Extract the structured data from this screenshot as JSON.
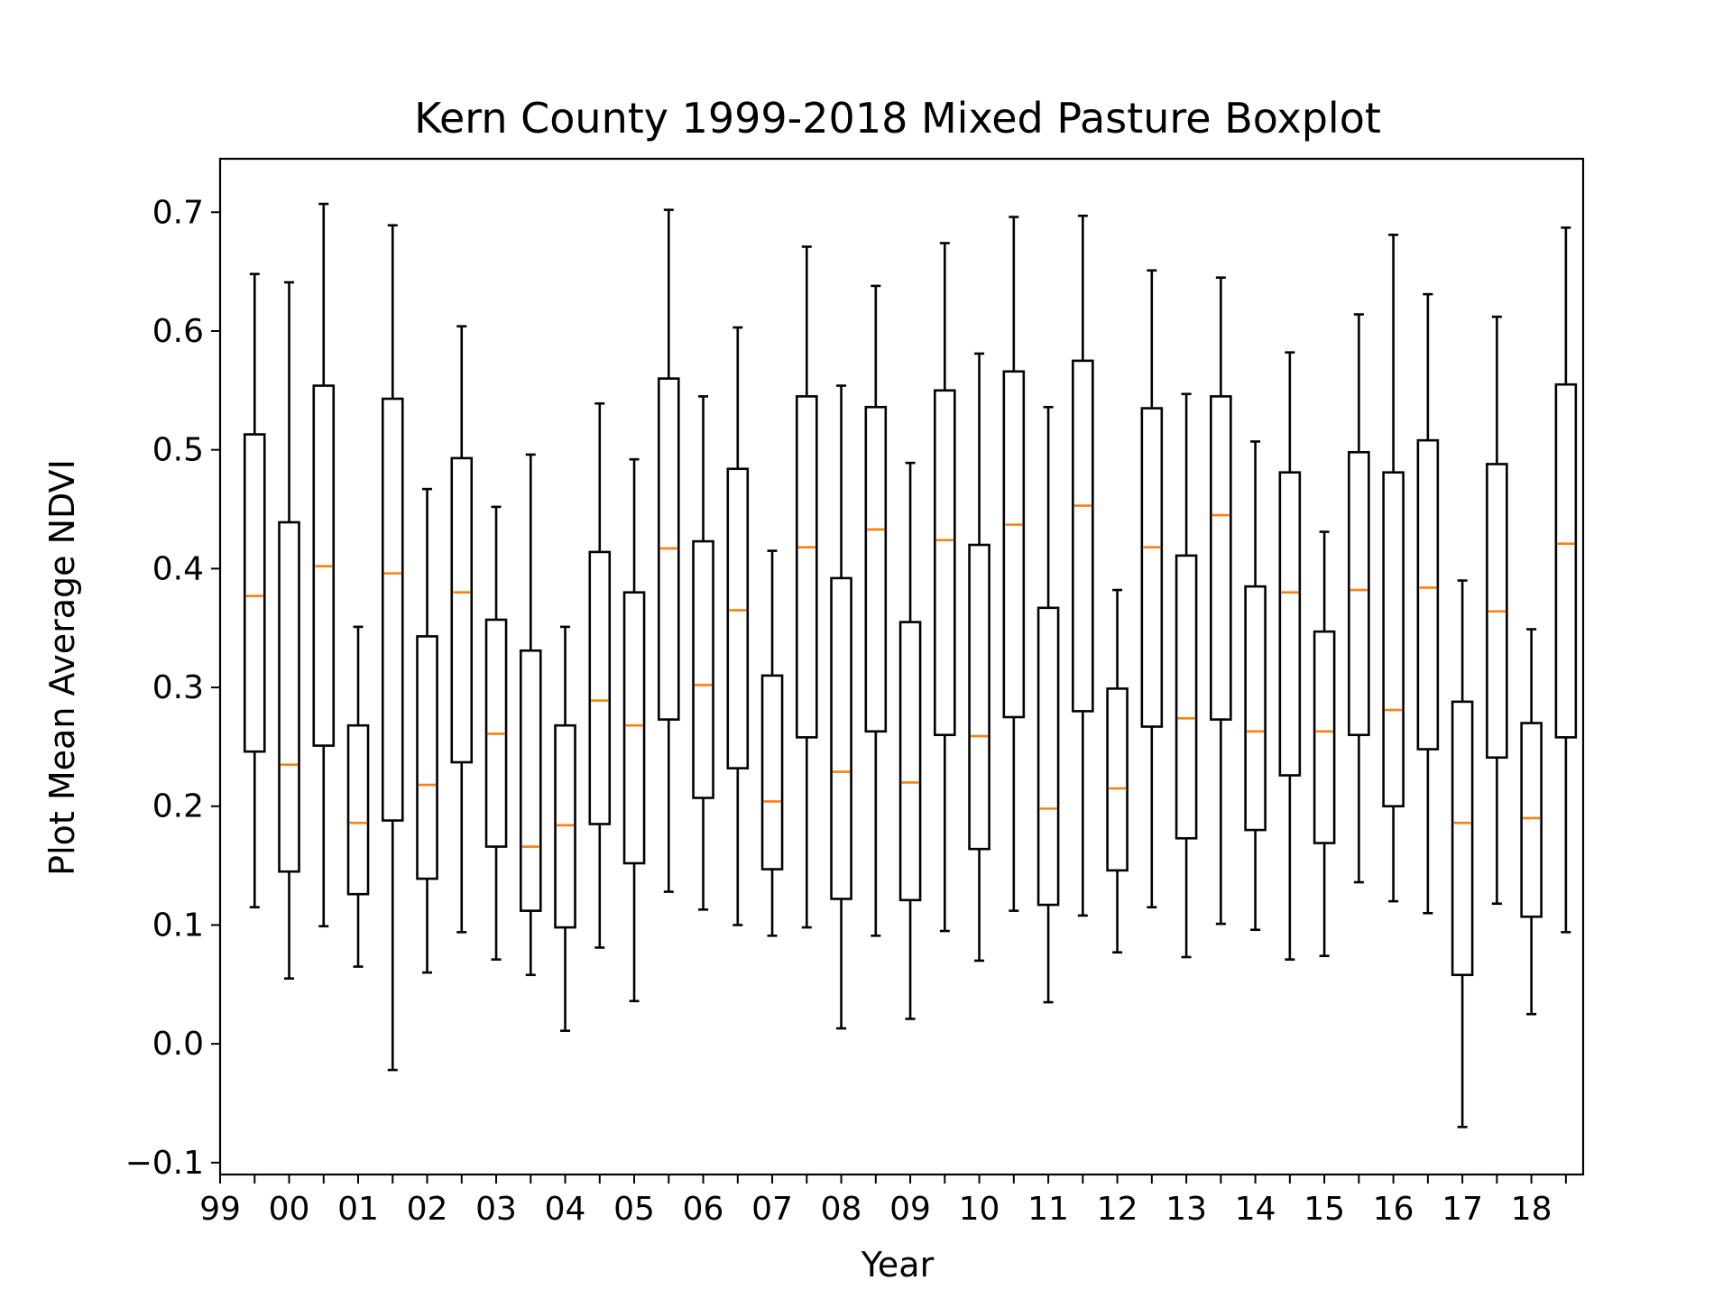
{
  "chart_data": {
    "type": "boxplot",
    "title": "Kern County 1999-2018 Mixed Pasture Boxplot",
    "xlabel": "Year",
    "ylabel": "Plot Mean Average NDVI",
    "ylim": [
      -0.11,
      0.745
    ],
    "yticks": [
      -0.1,
      0.0,
      0.1,
      0.2,
      0.3,
      0.4,
      0.5,
      0.6,
      0.7
    ],
    "ytick_labels": [
      "−0.1",
      "0.0",
      "0.1",
      "0.2",
      "0.3",
      "0.4",
      "0.5",
      "0.6",
      "0.7"
    ],
    "xlim": [
      0,
      39.5
    ],
    "xticks": [
      0,
      2,
      4,
      6,
      8,
      10,
      12,
      14,
      16,
      18,
      20,
      22,
      24,
      26,
      28,
      30,
      32,
      34,
      36,
      38
    ],
    "xtick_labels": [
      "99",
      "00",
      "01",
      "02",
      "03",
      "04",
      "05",
      "06",
      "07",
      "08",
      "09",
      "10",
      "11",
      "12",
      "13",
      "14",
      "15",
      "16",
      "17",
      "18"
    ],
    "minor_xticks": [
      1,
      3,
      5,
      7,
      9,
      11,
      13,
      15,
      17,
      19,
      21,
      23,
      25,
      27,
      29,
      31,
      33,
      35,
      37,
      39
    ],
    "grid": false,
    "median_color": "#ff7f0e",
    "box_color": "#000000",
    "boxes": [
      {
        "pos": 1,
        "whislo": 0.115,
        "q1": 0.246,
        "med": 0.377,
        "q3": 0.513,
        "whishi": 0.648
      },
      {
        "pos": 2,
        "whislo": 0.055,
        "q1": 0.145,
        "med": 0.235,
        "q3": 0.439,
        "whishi": 0.641
      },
      {
        "pos": 3,
        "whislo": 0.099,
        "q1": 0.251,
        "med": 0.402,
        "q3": 0.554,
        "whishi": 0.707
      },
      {
        "pos": 4,
        "whislo": 0.065,
        "q1": 0.126,
        "med": 0.186,
        "q3": 0.268,
        "whishi": 0.351
      },
      {
        "pos": 5,
        "whislo": -0.022,
        "q1": 0.188,
        "med": 0.396,
        "q3": 0.543,
        "whishi": 0.689
      },
      {
        "pos": 6,
        "whislo": 0.06,
        "q1": 0.139,
        "med": 0.218,
        "q3": 0.343,
        "whishi": 0.467
      },
      {
        "pos": 7,
        "whislo": 0.094,
        "q1": 0.237,
        "med": 0.38,
        "q3": 0.493,
        "whishi": 0.604
      },
      {
        "pos": 8,
        "whislo": 0.071,
        "q1": 0.166,
        "med": 0.261,
        "q3": 0.357,
        "whishi": 0.452
      },
      {
        "pos": 9,
        "whislo": 0.058,
        "q1": 0.112,
        "med": 0.166,
        "q3": 0.331,
        "whishi": 0.496
      },
      {
        "pos": 10,
        "whislo": 0.011,
        "q1": 0.098,
        "med": 0.184,
        "q3": 0.268,
        "whishi": 0.351
      },
      {
        "pos": 11,
        "whislo": 0.081,
        "q1": 0.185,
        "med": 0.289,
        "q3": 0.414,
        "whishi": 0.539
      },
      {
        "pos": 12,
        "whislo": 0.036,
        "q1": 0.152,
        "med": 0.268,
        "q3": 0.38,
        "whishi": 0.492
      },
      {
        "pos": 13,
        "whislo": 0.128,
        "q1": 0.273,
        "med": 0.417,
        "q3": 0.56,
        "whishi": 0.702
      },
      {
        "pos": 14,
        "whislo": 0.113,
        "q1": 0.207,
        "med": 0.302,
        "q3": 0.423,
        "whishi": 0.545
      },
      {
        "pos": 15,
        "whislo": 0.1,
        "q1": 0.232,
        "med": 0.365,
        "q3": 0.484,
        "whishi": 0.603
      },
      {
        "pos": 16,
        "whislo": 0.091,
        "q1": 0.147,
        "med": 0.204,
        "q3": 0.31,
        "whishi": 0.415
      },
      {
        "pos": 17,
        "whislo": 0.098,
        "q1": 0.258,
        "med": 0.418,
        "q3": 0.545,
        "whishi": 0.671
      },
      {
        "pos": 18,
        "whislo": 0.013,
        "q1": 0.122,
        "med": 0.229,
        "q3": 0.392,
        "whishi": 0.554
      },
      {
        "pos": 19,
        "whislo": 0.091,
        "q1": 0.263,
        "med": 0.433,
        "q3": 0.536,
        "whishi": 0.638
      },
      {
        "pos": 20,
        "whislo": 0.021,
        "q1": 0.121,
        "med": 0.22,
        "q3": 0.355,
        "whishi": 0.489
      },
      {
        "pos": 21,
        "whislo": 0.095,
        "q1": 0.26,
        "med": 0.424,
        "q3": 0.55,
        "whishi": 0.674
      },
      {
        "pos": 22,
        "whislo": 0.07,
        "q1": 0.164,
        "med": 0.259,
        "q3": 0.42,
        "whishi": 0.581
      },
      {
        "pos": 23,
        "whislo": 0.112,
        "q1": 0.275,
        "med": 0.437,
        "q3": 0.566,
        "whishi": 0.696
      },
      {
        "pos": 24,
        "whislo": 0.035,
        "q1": 0.117,
        "med": 0.198,
        "q3": 0.367,
        "whishi": 0.536
      },
      {
        "pos": 25,
        "whislo": 0.108,
        "q1": 0.28,
        "med": 0.453,
        "q3": 0.575,
        "whishi": 0.697
      },
      {
        "pos": 26,
        "whislo": 0.077,
        "q1": 0.146,
        "med": 0.215,
        "q3": 0.299,
        "whishi": 0.382
      },
      {
        "pos": 27,
        "whislo": 0.115,
        "q1": 0.267,
        "med": 0.418,
        "q3": 0.535,
        "whishi": 0.651
      },
      {
        "pos": 28,
        "whislo": 0.073,
        "q1": 0.173,
        "med": 0.274,
        "q3": 0.411,
        "whishi": 0.547
      },
      {
        "pos": 29,
        "whislo": 0.101,
        "q1": 0.273,
        "med": 0.445,
        "q3": 0.545,
        "whishi": 0.645
      },
      {
        "pos": 30,
        "whislo": 0.096,
        "q1": 0.18,
        "med": 0.263,
        "q3": 0.385,
        "whishi": 0.507
      },
      {
        "pos": 31,
        "whislo": 0.071,
        "q1": 0.226,
        "med": 0.38,
        "q3": 0.481,
        "whishi": 0.582
      },
      {
        "pos": 32,
        "whislo": 0.074,
        "q1": 0.169,
        "med": 0.263,
        "q3": 0.347,
        "whishi": 0.431
      },
      {
        "pos": 33,
        "whislo": 0.136,
        "q1": 0.26,
        "med": 0.382,
        "q3": 0.498,
        "whishi": 0.614
      },
      {
        "pos": 34,
        "whislo": 0.12,
        "q1": 0.2,
        "med": 0.281,
        "q3": 0.481,
        "whishi": 0.681
      },
      {
        "pos": 35,
        "whislo": 0.11,
        "q1": 0.248,
        "med": 0.384,
        "q3": 0.508,
        "whishi": 0.631
      },
      {
        "pos": 36,
        "whislo": -0.07,
        "q1": 0.058,
        "med": 0.186,
        "q3": 0.288,
        "whishi": 0.39
      },
      {
        "pos": 37,
        "whislo": 0.118,
        "q1": 0.241,
        "med": 0.364,
        "q3": 0.488,
        "whishi": 0.612
      },
      {
        "pos": 38,
        "whislo": 0.025,
        "q1": 0.107,
        "med": 0.19,
        "q3": 0.27,
        "whishi": 0.349
      },
      {
        "pos": 39,
        "whislo": 0.094,
        "q1": 0.258,
        "med": 0.421,
        "q3": 0.555,
        "whishi": 0.687
      }
    ]
  }
}
